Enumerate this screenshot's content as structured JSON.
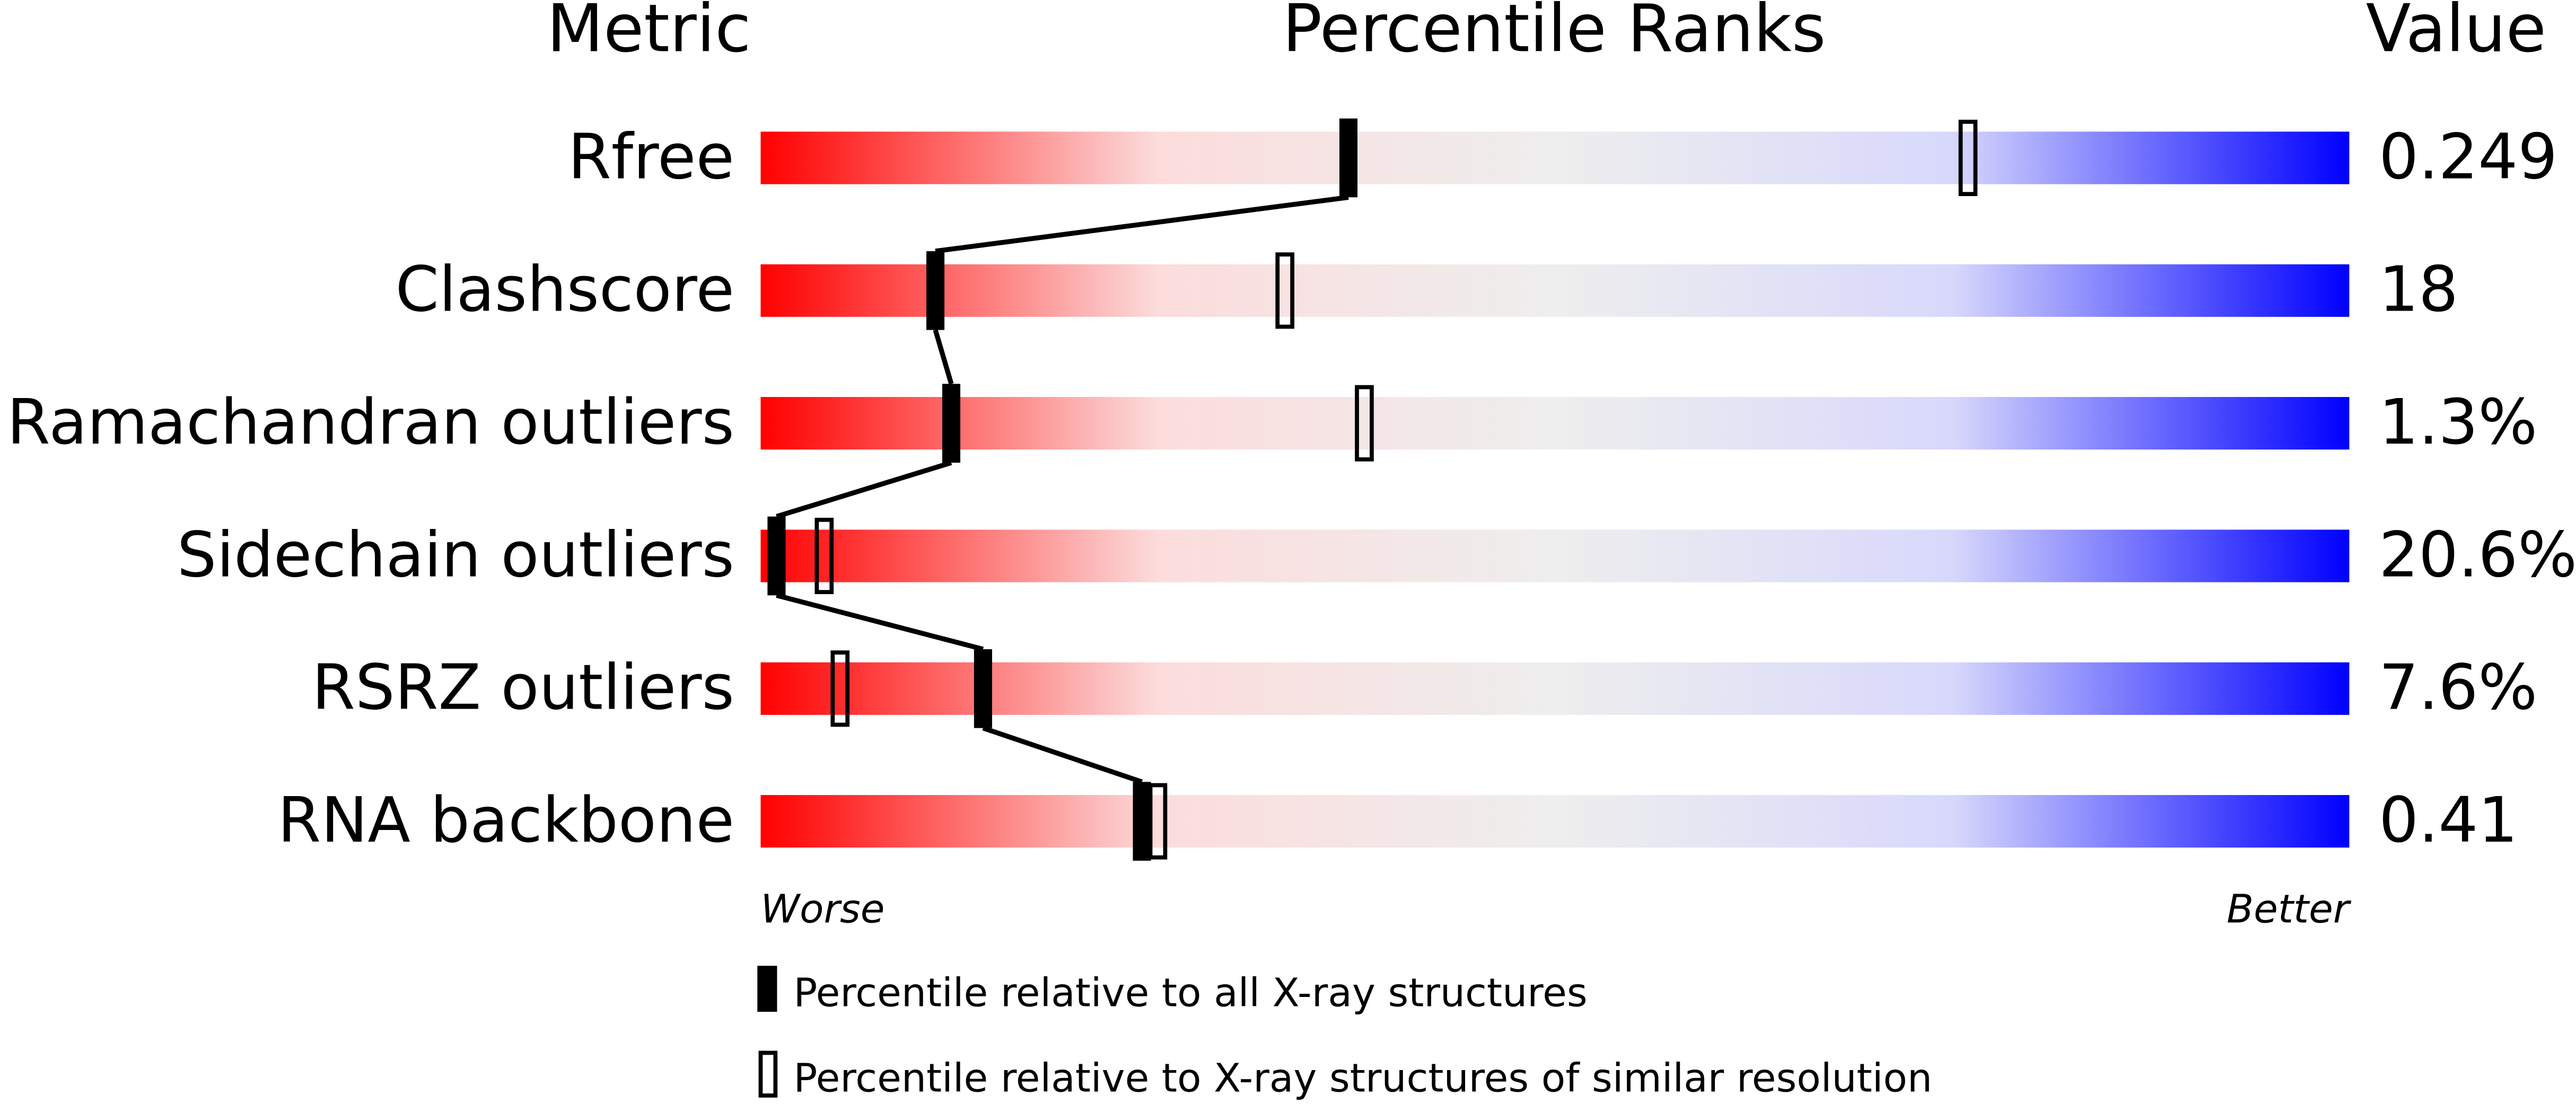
{
  "chart_data": {
    "type": "percentile",
    "title": "Percentile Ranks",
    "metric_header": "Metric",
    "value_header": "Value",
    "categories": [
      "Rfree",
      "Clashscore",
      "Ramachandran outliers",
      "Sidechain outliers",
      "RSRZ outliers",
      "RNA backbone"
    ],
    "values": [
      0.249,
      18,
      1.3,
      20.6,
      7.6,
      0.41
    ],
    "value_labels": [
      "0.249",
      "18",
      "1.3%",
      "20.6%",
      "7.6%",
      "0.41"
    ],
    "series": [
      {
        "name": "Percentile relative to all X-ray structures",
        "color": "#000000",
        "values": [
          37,
          11,
          12,
          1,
          14,
          24
        ]
      },
      {
        "name": "Percentile relative to X-ray structures of similar resolution",
        "color": "#000000",
        "values": [
          76,
          33,
          38,
          4,
          5,
          25
        ]
      }
    ],
    "xlim": [
      0,
      100
    ],
    "worse_label": "Worse",
    "better_label": "Better",
    "gradient": [
      "#ff0000",
      "#fcdcdc",
      "#eeeeee",
      "#d8d8fc",
      "#0000ff"
    ]
  }
}
